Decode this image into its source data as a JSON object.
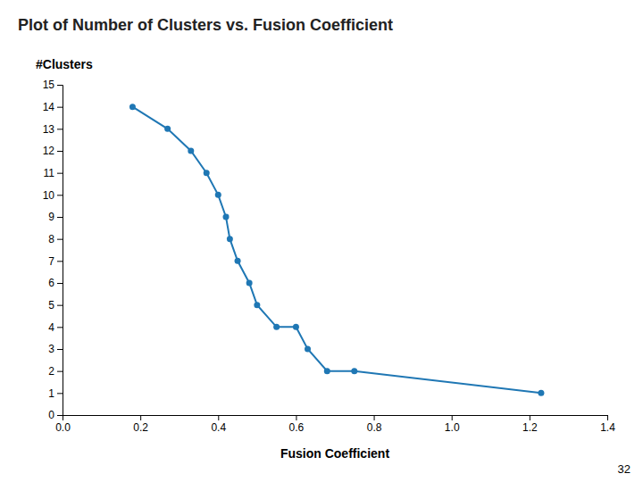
{
  "chart_data": {
    "type": "line",
    "title": "Plot of Number of Clusters vs. Fusion Coefficient",
    "xlabel": "Fusion Coefficient",
    "ylabel": "#Clusters",
    "annotations": [
      "32"
    ],
    "x": [
      0.18,
      0.27,
      0.33,
      0.37,
      0.4,
      0.42,
      0.43,
      0.45,
      0.48,
      0.5,
      0.55,
      0.6,
      0.63,
      0.68,
      0.75,
      1.23
    ],
    "values": [
      14,
      13,
      12,
      11,
      10,
      9,
      8,
      7,
      6,
      5,
      4,
      4,
      3,
      2,
      2,
      1
    ],
    "marker": "circle",
    "grid": false,
    "xlim": [
      0.0,
      1.4
    ],
    "ylim": [
      0,
      15
    ],
    "xticks": [
      {
        "value": 0.0,
        "label": "0.0"
      },
      {
        "value": 0.2,
        "label": "0.2"
      },
      {
        "value": 0.4,
        "label": "0.4"
      },
      {
        "value": 0.6,
        "label": "0.6"
      },
      {
        "value": 0.8,
        "label": "0.8"
      },
      {
        "value": 1.0,
        "label": "1.0"
      },
      {
        "value": 1.2,
        "label": "1.2"
      },
      {
        "value": 1.4,
        "label": "1.4"
      }
    ],
    "yticks": [
      0,
      1,
      2,
      3,
      4,
      5,
      6,
      7,
      8,
      9,
      10,
      11,
      12,
      13,
      14,
      15
    ]
  }
}
